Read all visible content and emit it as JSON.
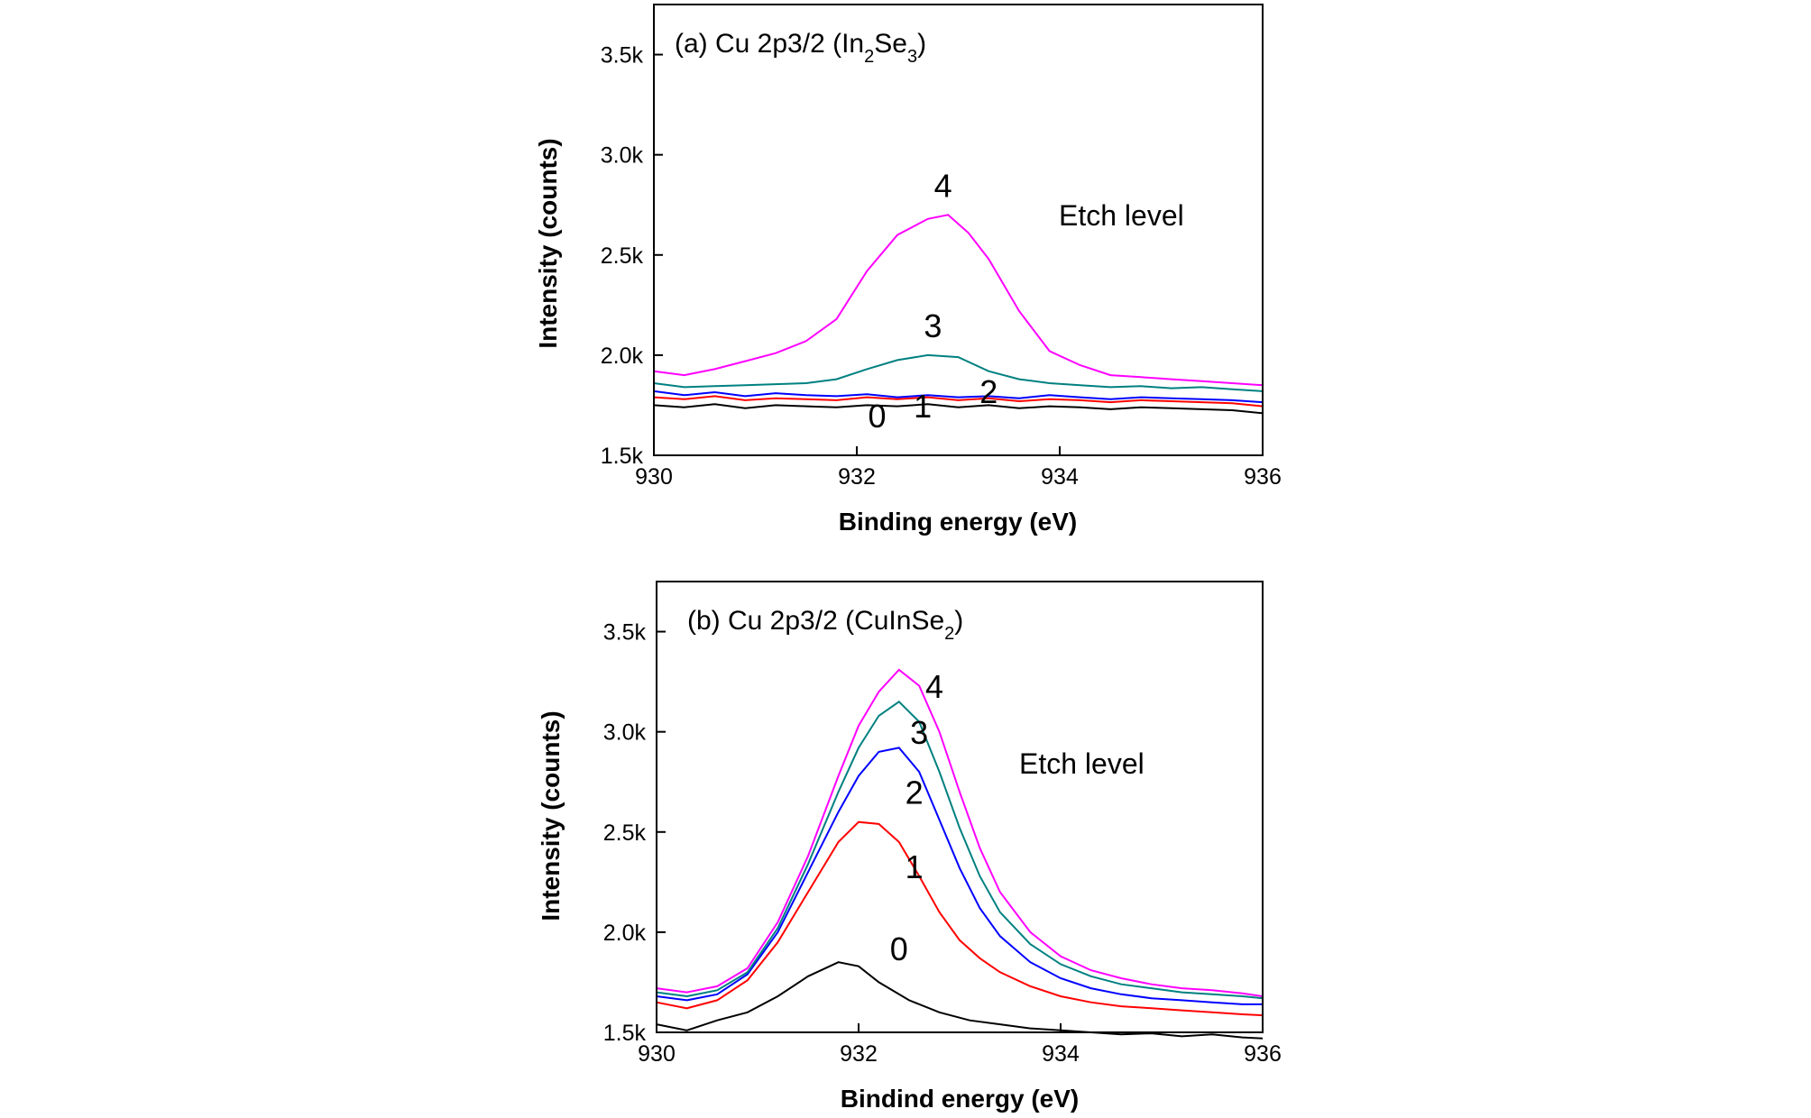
{
  "chart_data": [
    {
      "type": "line",
      "title": "(a) Cu 2p3/2 (In",
      "title_parts": {
        "prefix": "(a) Cu 2p3/2 (In",
        "sub1": "2",
        "mid": "Se",
        "sub2": "3",
        "suffix": ")"
      },
      "xlabel": "Binding energy (eV)",
      "ylabel": "Intensity (counts)",
      "xlim": [
        930,
        936
      ],
      "ylim": [
        1500,
        3750
      ],
      "xticks": [
        930,
        932,
        934,
        936
      ],
      "xtick_labels": [
        "930",
        "932",
        "934",
        "936"
      ],
      "yticks": [
        1500,
        2000,
        2500,
        3000,
        3500
      ],
      "ytick_labels": [
        "1.5k",
        "2.0k",
        "2.5k",
        "3.0k",
        "3.5k"
      ],
      "annotation": "Etch level",
      "series": [
        {
          "name": "0",
          "color": "#000000",
          "label_pos": [
            932.2,
            1640
          ],
          "x": [
            930,
            930.3,
            930.6,
            930.9,
            931.2,
            931.5,
            931.8,
            932.1,
            932.4,
            932.7,
            933.0,
            933.3,
            933.6,
            933.9,
            934.2,
            934.5,
            934.8,
            935.1,
            935.4,
            935.7,
            936
          ],
          "y": [
            1750,
            1740,
            1755,
            1735,
            1750,
            1745,
            1740,
            1750,
            1745,
            1755,
            1740,
            1750,
            1735,
            1745,
            1740,
            1730,
            1740,
            1735,
            1730,
            1725,
            1710
          ]
        },
        {
          "name": "1",
          "color": "#ff0000",
          "label_pos": [
            932.65,
            1690
          ],
          "x": [
            930,
            930.3,
            930.6,
            930.9,
            931.2,
            931.5,
            931.8,
            932.1,
            932.4,
            932.7,
            933.0,
            933.3,
            933.6,
            933.9,
            934.2,
            934.5,
            934.8,
            935.1,
            935.4,
            935.7,
            936
          ],
          "y": [
            1790,
            1780,
            1795,
            1775,
            1785,
            1780,
            1775,
            1790,
            1780,
            1790,
            1775,
            1785,
            1770,
            1780,
            1775,
            1765,
            1775,
            1770,
            1765,
            1760,
            1745
          ]
        },
        {
          "name": "2",
          "color": "#0000ff",
          "label_pos": [
            933.3,
            1760
          ],
          "x": [
            930,
            930.3,
            930.6,
            930.9,
            931.2,
            931.5,
            931.8,
            932.1,
            932.4,
            932.7,
            933.0,
            933.3,
            933.6,
            933.9,
            934.2,
            934.5,
            934.8,
            935.1,
            935.4,
            935.7,
            936
          ],
          "y": [
            1820,
            1800,
            1815,
            1795,
            1810,
            1800,
            1795,
            1805,
            1790,
            1800,
            1790,
            1795,
            1785,
            1800,
            1790,
            1780,
            1790,
            1785,
            1780,
            1775,
            1765
          ]
        },
        {
          "name": "3",
          "color": "#008080",
          "label_pos": [
            932.75,
            2090
          ],
          "x": [
            930,
            930.3,
            930.6,
            930.9,
            931.2,
            931.5,
            931.8,
            932.1,
            932.4,
            932.7,
            933.0,
            933.3,
            933.6,
            933.9,
            934.2,
            934.5,
            934.8,
            935.1,
            935.4,
            935.7,
            936
          ],
          "y": [
            1860,
            1840,
            1845,
            1850,
            1855,
            1860,
            1880,
            1930,
            1975,
            2000,
            1990,
            1920,
            1880,
            1860,
            1850,
            1840,
            1845,
            1835,
            1840,
            1830,
            1820
          ]
        },
        {
          "name": "4",
          "color": "#ff00ff",
          "label_pos": [
            932.85,
            2790
          ],
          "x": [
            930,
            930.3,
            930.6,
            930.9,
            931.2,
            931.5,
            931.8,
            932.1,
            932.4,
            932.7,
            932.9,
            933.1,
            933.3,
            933.6,
            933.9,
            934.2,
            934.5,
            934.8,
            935.1,
            935.4,
            935.7,
            936
          ],
          "y": [
            1920,
            1900,
            1930,
            1970,
            2010,
            2070,
            2180,
            2420,
            2600,
            2680,
            2700,
            2610,
            2480,
            2220,
            2020,
            1950,
            1900,
            1890,
            1880,
            1870,
            1860,
            1850
          ]
        }
      ]
    },
    {
      "type": "line",
      "title": "(b) Cu 2p3/2 (CuInSe",
      "title_parts": {
        "prefix": "(b) Cu 2p3/2 (CuInSe",
        "sub1": "2",
        "mid": "",
        "sub2": "",
        "suffix": ")"
      },
      "xlabel": "Bindind energy (eV)",
      "ylabel": "Intensity (counts)",
      "xlim": [
        930,
        936
      ],
      "ylim": [
        1500,
        3750
      ],
      "xticks": [
        930,
        932,
        934,
        936
      ],
      "xtick_labels": [
        "930",
        "932",
        "934",
        "936"
      ],
      "yticks": [
        1500,
        2000,
        2500,
        3000,
        3500
      ],
      "ytick_labels": [
        "1.5k",
        "2.0k",
        "2.5k",
        "3.0k",
        "3.5k"
      ],
      "annotation": "Etch level",
      "series": [
        {
          "name": "0",
          "color": "#000000",
          "label_pos": [
            932.4,
            1860
          ],
          "x": [
            930,
            930.3,
            930.6,
            930.9,
            931.2,
            931.5,
            931.8,
            932.0,
            932.2,
            932.5,
            932.8,
            933.1,
            933.4,
            933.7,
            934.0,
            934.3,
            934.6,
            934.9,
            935.2,
            935.5,
            935.8,
            936
          ],
          "y": [
            1540,
            1510,
            1560,
            1600,
            1680,
            1780,
            1850,
            1830,
            1750,
            1660,
            1600,
            1560,
            1540,
            1520,
            1510,
            1500,
            1490,
            1495,
            1480,
            1490,
            1475,
            1470
          ]
        },
        {
          "name": "1",
          "color": "#ff0000",
          "label_pos": [
            932.55,
            2270
          ],
          "x": [
            930,
            930.3,
            930.6,
            930.9,
            931.2,
            931.5,
            931.8,
            932.0,
            932.2,
            932.4,
            932.6,
            932.8,
            933.0,
            933.2,
            933.4,
            933.7,
            934.0,
            934.3,
            934.6,
            934.9,
            935.2,
            935.5,
            935.8,
            936
          ],
          "y": [
            1650,
            1620,
            1660,
            1760,
            1950,
            2200,
            2450,
            2550,
            2540,
            2450,
            2280,
            2100,
            1960,
            1870,
            1800,
            1730,
            1680,
            1650,
            1630,
            1620,
            1610,
            1600,
            1590,
            1585
          ]
        },
        {
          "name": "2",
          "color": "#0000ff",
          "label_pos": [
            932.55,
            2640
          ],
          "x": [
            930,
            930.3,
            930.6,
            930.9,
            931.2,
            931.5,
            931.8,
            932.0,
            932.2,
            932.4,
            932.6,
            932.8,
            933.0,
            933.2,
            933.4,
            933.7,
            934.0,
            934.3,
            934.6,
            934.9,
            935.2,
            935.5,
            935.8,
            936
          ],
          "y": [
            1680,
            1660,
            1690,
            1790,
            2000,
            2300,
            2600,
            2780,
            2900,
            2920,
            2800,
            2560,
            2320,
            2120,
            1980,
            1850,
            1770,
            1720,
            1690,
            1670,
            1660,
            1650,
            1640,
            1640
          ]
        },
        {
          "name": "3",
          "color": "#008080",
          "label_pos": [
            932.6,
            2940
          ],
          "x": [
            930,
            930.3,
            930.6,
            930.9,
            931.2,
            931.5,
            931.8,
            932.0,
            932.2,
            932.4,
            932.6,
            932.8,
            933.0,
            933.2,
            933.4,
            933.7,
            934.0,
            934.3,
            934.6,
            934.9,
            935.2,
            935.5,
            935.8,
            936
          ],
          "y": [
            1700,
            1680,
            1710,
            1800,
            2020,
            2340,
            2700,
            2920,
            3080,
            3150,
            3050,
            2800,
            2520,
            2280,
            2100,
            1940,
            1840,
            1780,
            1740,
            1720,
            1700,
            1690,
            1680,
            1670
          ]
        },
        {
          "name": "4",
          "color": "#ff00ff",
          "label_pos": [
            932.75,
            3170
          ],
          "x": [
            930,
            930.3,
            930.6,
            930.9,
            931.2,
            931.5,
            931.8,
            932.0,
            932.2,
            932.4,
            932.6,
            932.8,
            933.0,
            933.2,
            933.4,
            933.7,
            934.0,
            934.3,
            934.6,
            934.9,
            935.2,
            935.5,
            935.8,
            936
          ],
          "y": [
            1720,
            1700,
            1730,
            1820,
            2050,
            2380,
            2780,
            3030,
            3200,
            3310,
            3230,
            3000,
            2700,
            2420,
            2200,
            2000,
            1880,
            1810,
            1770,
            1740,
            1720,
            1710,
            1695,
            1680
          ]
        }
      ]
    }
  ]
}
